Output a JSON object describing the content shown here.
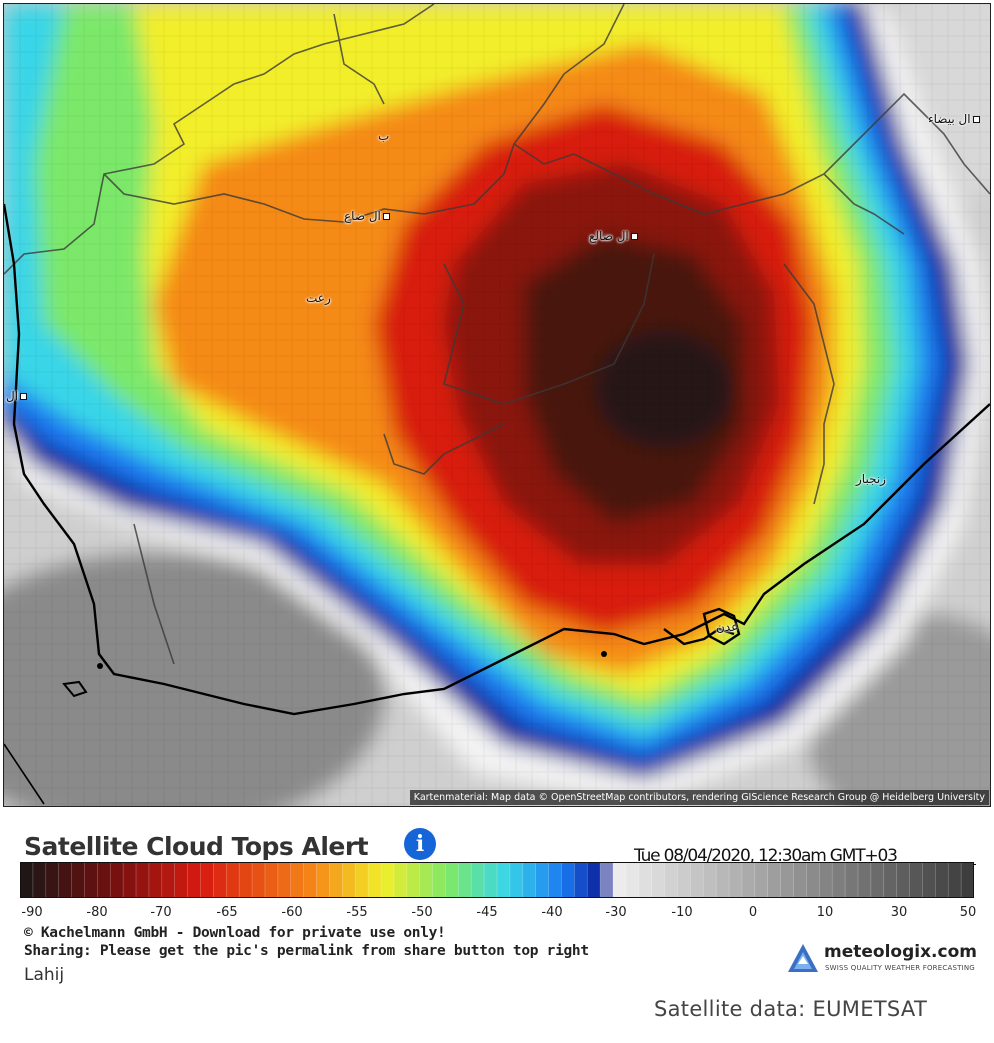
{
  "map": {
    "attribution": "Kartenmaterial: Map data © OpenStreetMap contributors, rendering GIScience Research Group @ Heidelberg University",
    "places": [
      {
        "label": "ال ضالع",
        "name": "place-al-dhale"
      },
      {
        "label": "ال ضاع",
        "name": "place-al-dhaa"
      },
      {
        "label": "ب",
        "name": "place-b"
      },
      {
        "label": "رعت",
        "name": "place-rat"
      },
      {
        "label": "ال",
        "name": "place-al-west"
      },
      {
        "label": "ال بيضاء",
        "name": "place-al-bayda"
      },
      {
        "label": "زنجبار",
        "name": "place-zinjibar"
      },
      {
        "label": "عدن",
        "name": "place-aden"
      }
    ]
  },
  "legend": {
    "title": "Satellite Cloud Tops Alert",
    "info_icon": "info-icon",
    "timestamp": "Tue 08/04/2020, 12:30am GMT+03",
    "ticks": [
      "-90",
      "-80",
      "-70",
      "-65",
      "-60",
      "-55",
      "-50",
      "-45",
      "-40",
      "-30",
      "-10",
      "0",
      "10",
      "30",
      "50"
    ],
    "colors": {
      "darkest": "#1a1616",
      "dark_red": "#6b1010",
      "red": "#d81a10",
      "orange": "#f58a18",
      "yellow": "#f2ee2a",
      "green": "#7ce86a",
      "cyan": "#38d6e8",
      "blue": "#1a78f0",
      "navy": "#0c1c98",
      "light_gray": "#f0f0f0",
      "dark_gray": "#3a3a3a"
    }
  },
  "footer": {
    "copyright": "© Kachelmann GmbH - Download for private use only!",
    "sharing": "Sharing: Please get the pic's permalink from share button top right",
    "location": "Lahij",
    "logo_name": "meteologix.com",
    "logo_tagline": "SWISS QUALITY WEATHER FORECASTING",
    "credit": "Satellite data: EUMETSAT"
  }
}
